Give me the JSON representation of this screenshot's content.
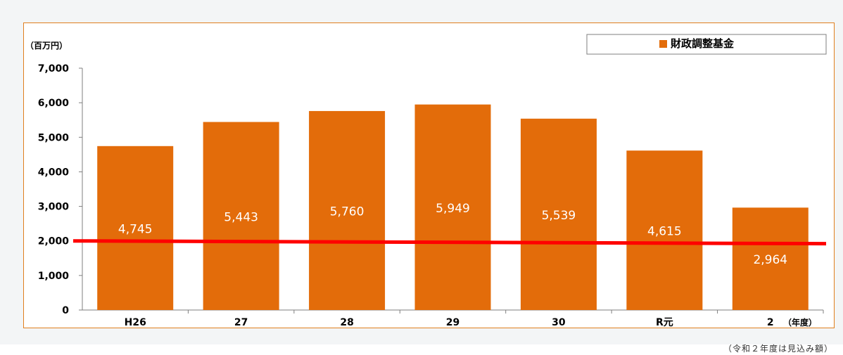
{
  "chart_data": {
    "type": "bar",
    "y_unit_label": "（百万円）",
    "x_unit_label": "（年度）",
    "categories": [
      "H26",
      "27",
      "28",
      "29",
      "30",
      "R元",
      "2"
    ],
    "series": [
      {
        "name": "財政調整基金",
        "values": [
          4745,
          5443,
          5760,
          5949,
          5539,
          4615,
          2964
        ]
      }
    ],
    "data_labels": [
      "4,745",
      "5,443",
      "5,760",
      "5,949",
      "5,539",
      "4,615",
      "2,964"
    ],
    "y_ticks": [
      "0",
      "1,000",
      "2,000",
      "3,000",
      "4,000",
      "5,000",
      "6,000",
      "7,000"
    ],
    "ylim": [
      0,
      7000
    ],
    "reference_line": {
      "start": 2000,
      "end": 1920,
      "color": "#ff0000"
    },
    "legend_position": "top-right",
    "grid": false,
    "colors": {
      "bar": "#e36c0a",
      "frame": "#e07f1e",
      "data_label": "#ffffff"
    },
    "footnote": "（令和２年度は見込み額）"
  }
}
